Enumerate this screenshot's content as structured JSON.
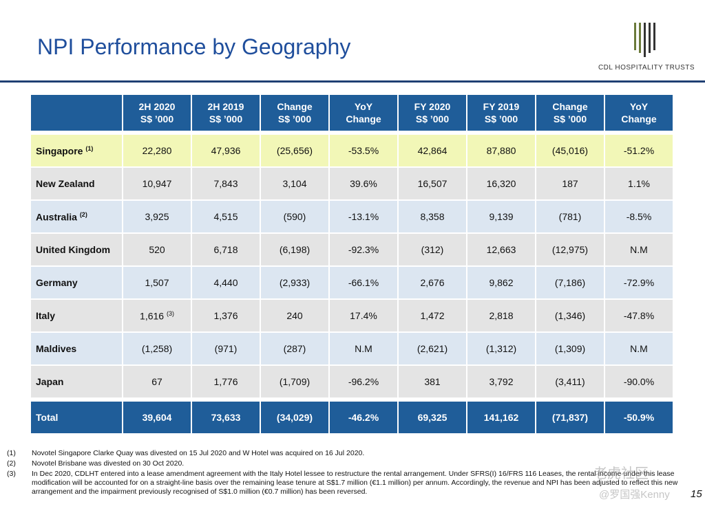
{
  "header": {
    "title": "NPI Performance by Geography",
    "logo_text": "CDL HOSPITALITY TRUSTS"
  },
  "table": {
    "columns": [
      [
        "2H 2020",
        "S$ ’000"
      ],
      [
        "2H 2019",
        "S$ ’000"
      ],
      [
        "Change",
        "S$ ’000"
      ],
      [
        "YoY",
        "Change"
      ],
      [
        "FY 2020",
        "S$ ’000"
      ],
      [
        "FY 2019",
        "S$ ’000"
      ],
      [
        "Change",
        "S$ ’000"
      ],
      [
        "YoY",
        "Change"
      ]
    ],
    "rows": [
      {
        "name": "Singapore",
        "sup": "(1)",
        "cells": [
          {
            "text": "22,280"
          },
          {
            "text": "47,936"
          },
          {
            "text": "(25,656)"
          },
          {
            "text": "-53.5%"
          },
          {
            "text": "42,864"
          },
          {
            "text": "87,880"
          },
          {
            "text": "(45,016)"
          },
          {
            "text": "-51.2%"
          }
        ]
      },
      {
        "name": "New Zealand",
        "cells": [
          {
            "text": "10,947"
          },
          {
            "text": "7,843"
          },
          {
            "text": "3,104"
          },
          {
            "text": "39.6%"
          },
          {
            "text": "16,507"
          },
          {
            "text": "16,320"
          },
          {
            "text": "187"
          },
          {
            "text": "1.1%"
          }
        ]
      },
      {
        "name": "Australia",
        "sup": "(2)",
        "cells": [
          {
            "text": "3,925"
          },
          {
            "text": "4,515"
          },
          {
            "text": "(590)"
          },
          {
            "text": "-13.1%"
          },
          {
            "text": "8,358"
          },
          {
            "text": "9,139"
          },
          {
            "text": "(781)"
          },
          {
            "text": "-8.5%"
          }
        ]
      },
      {
        "name": "United Kingdom",
        "cells": [
          {
            "text": "520"
          },
          {
            "text": "6,718"
          },
          {
            "text": "(6,198)"
          },
          {
            "text": "-92.3%"
          },
          {
            "text": "(312)"
          },
          {
            "text": "12,663"
          },
          {
            "text": "(12,975)"
          },
          {
            "text": "N.M"
          }
        ]
      },
      {
        "name": "Germany",
        "cells": [
          {
            "text": "1,507"
          },
          {
            "text": "4,440"
          },
          {
            "text": "(2,933)"
          },
          {
            "text": "-66.1%"
          },
          {
            "text": "2,676"
          },
          {
            "text": "9,862"
          },
          {
            "text": "(7,186)"
          },
          {
            "text": "-72.9%"
          }
        ]
      },
      {
        "name": "Italy",
        "cells": [
          {
            "text": "1,616",
            "sup": "(3)"
          },
          {
            "text": "1,376"
          },
          {
            "text": "240"
          },
          {
            "text": "17.4%"
          },
          {
            "text": "1,472"
          },
          {
            "text": "2,818"
          },
          {
            "text": "(1,346)"
          },
          {
            "text": "-47.8%"
          }
        ]
      },
      {
        "name": "Maldives",
        "cells": [
          {
            "text": "(1,258)"
          },
          {
            "text": "(971)"
          },
          {
            "text": "(287)"
          },
          {
            "text": "N.M"
          },
          {
            "text": "(2,621)"
          },
          {
            "text": "(1,312)"
          },
          {
            "text": "(1,309)"
          },
          {
            "text": "N.M"
          }
        ]
      },
      {
        "name": "Japan",
        "cells": [
          {
            "text": "67"
          },
          {
            "text": "1,776"
          },
          {
            "text": "(1,709)"
          },
          {
            "text": "-96.2%"
          },
          {
            "text": "381"
          },
          {
            "text": "3,792"
          },
          {
            "text": "(3,411)"
          },
          {
            "text": "-90.0%"
          }
        ]
      },
      {
        "name": "Total",
        "cells": [
          {
            "text": "39,604"
          },
          {
            "text": "73,633"
          },
          {
            "text": "(34,029)"
          },
          {
            "text": "-46.2%"
          },
          {
            "text": "69,325"
          },
          {
            "text": "141,162"
          },
          {
            "text": "(71,837)"
          },
          {
            "text": "-50.9%"
          }
        ]
      }
    ]
  },
  "footnotes": [
    {
      "marker": "(1)",
      "text": "Novotel Singapore Clarke Quay was divested on 15 Jul 2020 and W Hotel was acquired on 16 Jul 2020."
    },
    {
      "marker": "(2)",
      "text": "Novotel Brisbane was divested on 30 Oct 2020."
    },
    {
      "marker": "(3)",
      "text": "In Dec 2020, CDLHT entered into a lease amendment agreement with the Italy Hotel lessee to restructure the rental arrangement. Under SFRS(I) 16/FRS 116 Leases, the rental income under this lease modification will be accounted for on a straight-line basis over the remaining lease tenure at S$1.7 million (€1.1 million) per annum. Accordingly, the revenue and NPI has been adjusted to reflect this new arrangement and the impairment previously recognised of S$1.0 million (€0.7 million) has been reversed."
    }
  ],
  "page_number": "15",
  "watermark": [
    "老虎社区",
    "@罗国强Kenny"
  ]
}
